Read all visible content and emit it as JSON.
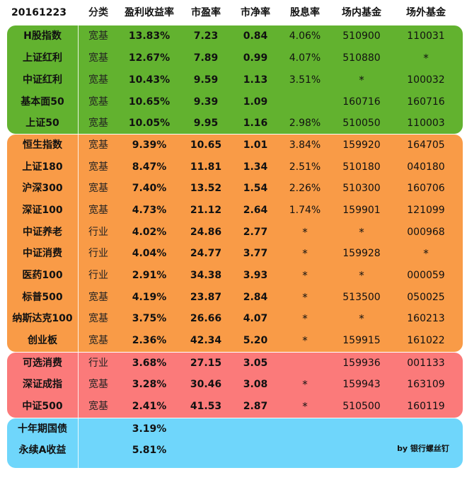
{
  "header": [
    "20161223",
    "分类",
    "盈利收益率",
    "市盈率",
    "市净率",
    "股息率",
    "场内基金",
    "场外基金"
  ],
  "colors": {
    "green": "#62b22f",
    "orange": "#f99b47",
    "red": "#fb7a7a",
    "blue": "#6fd6fb"
  },
  "rows": [
    {
      "group": "green",
      "name": "H股指数",
      "type": "宽基",
      "yield": "13.83%",
      "pe": "7.23",
      "pb": "0.84",
      "div": "4.06%",
      "onfund": "510900",
      "offfund": "110031"
    },
    {
      "group": "green",
      "name": "上证红利",
      "type": "宽基",
      "yield": "12.67%",
      "pe": "7.89",
      "pb": "0.99",
      "div": "4.07%",
      "onfund": "510880",
      "offfund": "*"
    },
    {
      "group": "green",
      "name": "中证红利",
      "type": "宽基",
      "yield": "10.43%",
      "pe": "9.59",
      "pb": "1.13",
      "div": "3.51%",
      "onfund": "*",
      "offfund": "100032"
    },
    {
      "group": "green",
      "name": "基本面50",
      "type": "宽基",
      "yield": "10.65%",
      "pe": "9.39",
      "pb": "1.09",
      "div": "",
      "onfund": "160716",
      "offfund": "160716"
    },
    {
      "group": "green",
      "name": "上证50",
      "type": "宽基",
      "yield": "10.05%",
      "pe": "9.95",
      "pb": "1.16",
      "div": "2.98%",
      "onfund": "510050",
      "offfund": "110003"
    },
    {
      "group": "orange",
      "name": "恒生指数",
      "type": "宽基",
      "yield": "9.39%",
      "pe": "10.65",
      "pb": "1.01",
      "div": "3.84%",
      "onfund": "159920",
      "offfund": "164705"
    },
    {
      "group": "orange",
      "name": "上证180",
      "type": "宽基",
      "yield": "8.47%",
      "pe": "11.81",
      "pb": "1.34",
      "div": "2.51%",
      "onfund": "510180",
      "offfund": "040180"
    },
    {
      "group": "orange",
      "name": "沪深300",
      "type": "宽基",
      "yield": "7.40%",
      "pe": "13.52",
      "pb": "1.54",
      "div": "2.26%",
      "onfund": "510300",
      "offfund": "160706"
    },
    {
      "group": "orange",
      "name": "深证100",
      "type": "宽基",
      "yield": "4.73%",
      "pe": "21.12",
      "pb": "2.64",
      "div": "1.74%",
      "onfund": "159901",
      "offfund": "121099"
    },
    {
      "group": "orange",
      "name": "中证养老",
      "type": "行业",
      "yield": "4.02%",
      "pe": "24.86",
      "pb": "2.77",
      "div": "*",
      "onfund": "*",
      "offfund": "000968"
    },
    {
      "group": "orange",
      "name": "中证消费",
      "type": "行业",
      "yield": "4.04%",
      "pe": "24.77",
      "pb": "3.77",
      "div": "*",
      "onfund": "159928",
      "offfund": "*"
    },
    {
      "group": "orange",
      "name": "医药100",
      "type": "行业",
      "yield": "2.91%",
      "pe": "34.38",
      "pb": "3.93",
      "div": "*",
      "onfund": "*",
      "offfund": "000059"
    },
    {
      "group": "orange",
      "name": "标普500",
      "type": "宽基",
      "yield": "4.19%",
      "pe": "23.87",
      "pb": "2.84",
      "div": "*",
      "onfund": "513500",
      "offfund": "050025"
    },
    {
      "group": "orange",
      "name": "纳斯达克100",
      "type": "宽基",
      "yield": "3.75%",
      "pe": "26.66",
      "pb": "4.07",
      "div": "*",
      "onfund": "*",
      "offfund": "160213"
    },
    {
      "group": "orange",
      "name": "创业板",
      "type": "宽基",
      "yield": "2.36%",
      "pe": "42.34",
      "pb": "5.20",
      "div": "*",
      "onfund": "159915",
      "offfund": "161022"
    },
    {
      "group": "red",
      "name": "可选消费",
      "type": "行业",
      "yield": "3.68%",
      "pe": "27.15",
      "pb": "3.05",
      "div": "",
      "onfund": "159936",
      "offfund": "001133"
    },
    {
      "group": "red",
      "name": "深证成指",
      "type": "宽基",
      "yield": "3.28%",
      "pe": "30.46",
      "pb": "3.08",
      "div": "*",
      "onfund": "159943",
      "offfund": "163109"
    },
    {
      "group": "red",
      "name": "中证500",
      "type": "宽基",
      "yield": "2.41%",
      "pe": "41.53",
      "pb": "2.87",
      "div": "*",
      "onfund": "510500",
      "offfund": "160119"
    },
    {
      "group": "blue",
      "name": "十年期国债",
      "type": "",
      "yield": "3.19%",
      "pe": "",
      "pb": "",
      "div": "",
      "onfund": "",
      "offfund": ""
    },
    {
      "group": "blue",
      "name": "永续A收益",
      "type": "",
      "yield": "5.81%",
      "pe": "",
      "pb": "",
      "div": "",
      "onfund": "",
      "offfund": ""
    }
  ],
  "credit": "by 银行螺丝钉"
}
